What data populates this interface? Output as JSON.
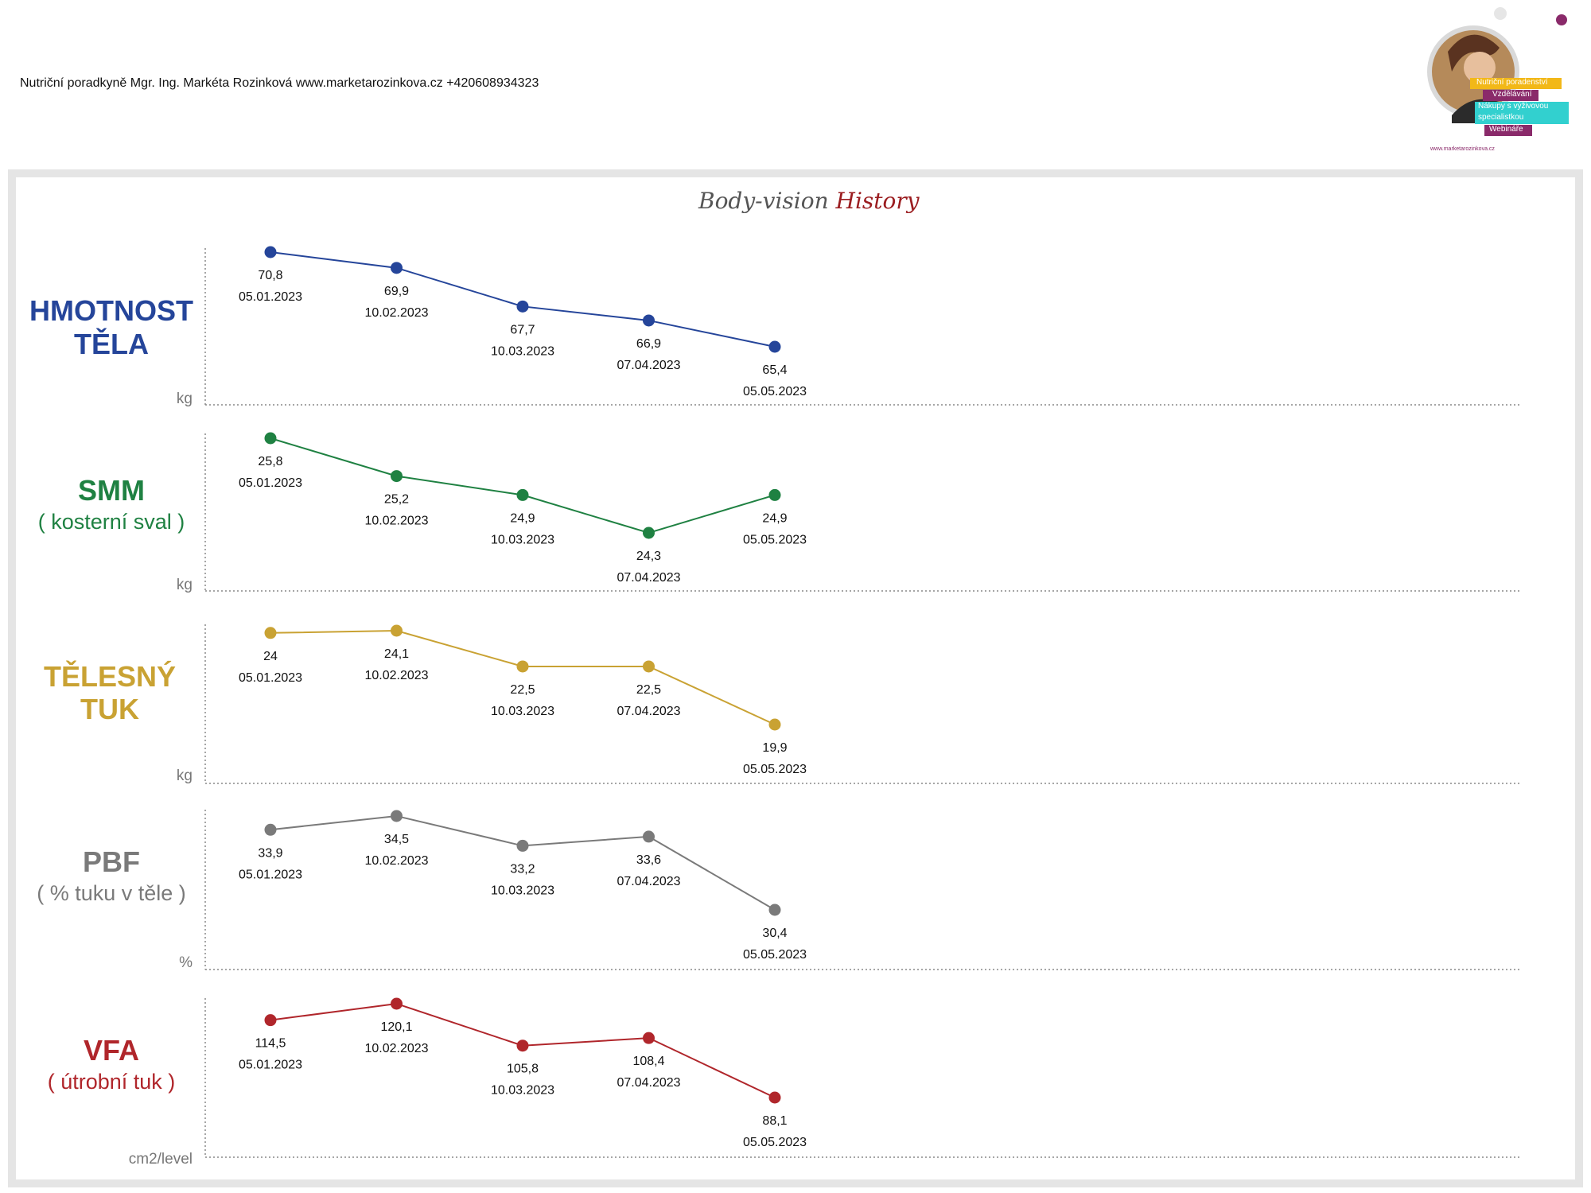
{
  "header": {
    "text": "Nutriční poradkyně Mgr. Ing. Markéta Rozinková www.marketarozinkova.cz +420608934323"
  },
  "logo": {
    "tags": [
      "Nutriční poradenství",
      "Vzdělávání",
      "Nákupy s výživovou",
      "specialistkou",
      "Webináře"
    ],
    "url": "www.marketarozinkova.cz"
  },
  "title": {
    "part1": "Body-vision",
    "part2": "History"
  },
  "colors": {
    "weight": "#25459a",
    "smm": "#1f8142",
    "fat": "#c9a233",
    "pbf": "#7a7a7a",
    "vfa": "#b0262b",
    "axis": "#888888"
  },
  "chart_data": [
    {
      "type": "line",
      "title": "HMOTNOST TĚLA",
      "subtitle": "",
      "unit": "kg",
      "x": [
        "05.01.2023",
        "10.02.2023",
        "10.03.2023",
        "07.04.2023",
        "05.05.2023"
      ],
      "values": [
        70.8,
        69.9,
        67.7,
        66.9,
        65.4
      ],
      "labels": [
        "70,8",
        "69,9",
        "67,7",
        "66,9",
        "65,4"
      ],
      "grid": false
    },
    {
      "type": "line",
      "title": "SMM",
      "subtitle": "( kosterní sval )",
      "unit": "kg",
      "x": [
        "05.01.2023",
        "10.02.2023",
        "10.03.2023",
        "07.04.2023",
        "05.05.2023"
      ],
      "values": [
        25.8,
        25.2,
        24.9,
        24.3,
        24.9
      ],
      "labels": [
        "25,8",
        "25,2",
        "24,9",
        "24,3",
        "24,9"
      ],
      "grid": false
    },
    {
      "type": "line",
      "title": "TĚLESNÝ TUK",
      "subtitle": "",
      "unit": "kg",
      "x": [
        "05.01.2023",
        "10.02.2023",
        "10.03.2023",
        "07.04.2023",
        "05.05.2023"
      ],
      "values": [
        24,
        24.1,
        22.5,
        22.5,
        19.9
      ],
      "labels": [
        "24",
        "24,1",
        "22,5",
        "22,5",
        "19,9"
      ],
      "grid": false
    },
    {
      "type": "line",
      "title": "PBF",
      "subtitle": "( % tuku v těle )",
      "unit": "%",
      "x": [
        "05.01.2023",
        "10.02.2023",
        "10.03.2023",
        "07.04.2023",
        "05.05.2023"
      ],
      "values": [
        33.9,
        34.5,
        33.2,
        33.6,
        30.4
      ],
      "labels": [
        "33,9",
        "34,5",
        "33,2",
        "33,6",
        "30,4"
      ],
      "grid": false
    },
    {
      "type": "line",
      "title": "VFA",
      "subtitle": "( útrobní tuk )",
      "unit": "cm2/level",
      "x": [
        "05.01.2023",
        "10.02.2023",
        "10.03.2023",
        "07.04.2023",
        "05.05.2023"
      ],
      "values": [
        114.5,
        120.1,
        105.8,
        108.4,
        88.1
      ],
      "labels": [
        "114,5",
        "120,1",
        "105,8",
        "108,4",
        "88,1"
      ],
      "grid": false
    }
  ]
}
